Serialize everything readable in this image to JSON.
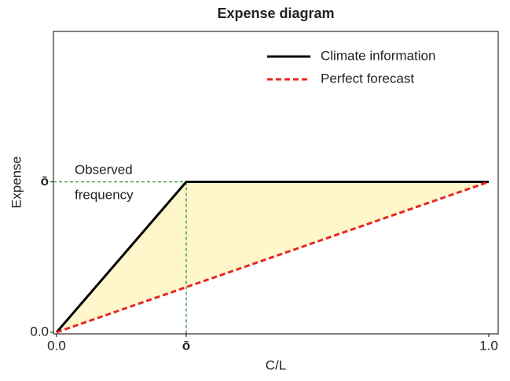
{
  "chart_data": {
    "type": "line",
    "title": "Expense diagram",
    "x_label": "C/L",
    "y_label": "Expense",
    "xlim": [
      0,
      1
    ],
    "ylim": [
      0,
      0.6
    ],
    "xticks": [
      {
        "value": 0,
        "label": "0.0"
      },
      {
        "value": 0.3,
        "label": "ō"
      },
      {
        "value": 1,
        "label": "1.0"
      }
    ],
    "yticks": [
      {
        "value": 0,
        "label": "0.0"
      },
      {
        "value": 0.3,
        "label": "ō"
      }
    ],
    "series": [
      {
        "name": "Climate information",
        "color": "#000000",
        "dashed": false,
        "x": [
          0,
          0.3,
          1
        ],
        "values": [
          0,
          0.3,
          0.3
        ]
      },
      {
        "name": "Perfect forecast",
        "color": "#e8261e",
        "dashed": true,
        "x": [
          0,
          1
        ],
        "values": [
          0,
          0.3
        ]
      }
    ],
    "fill_between": {
      "color": "#fff6cc",
      "series": [
        0,
        1
      ]
    },
    "guide_color": "#1f8a2e",
    "annotation": [
      "Observed",
      "frequency"
    ],
    "legend": "upper right"
  }
}
